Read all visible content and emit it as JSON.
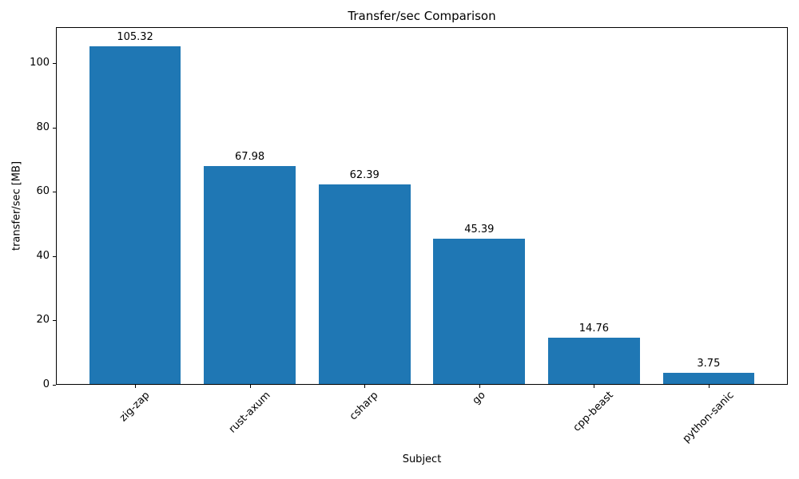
{
  "chart_data": {
    "type": "bar",
    "title": "Transfer/sec Comparison",
    "xlabel": "Subject",
    "ylabel": "transfer/sec [MB]",
    "categories": [
      "zig-zap",
      "rust-axum",
      "csharp",
      "go",
      "cpp-beast",
      "python-sanic"
    ],
    "values": [
      105.32,
      67.98,
      62.39,
      45.39,
      14.76,
      3.75
    ],
    "value_labels": [
      "105.32",
      "67.98",
      "62.39",
      "45.39",
      "14.76",
      "3.75"
    ],
    "yticks": [
      "0",
      "20",
      "40",
      "60",
      "80",
      "100"
    ],
    "ytick_values": [
      0,
      20,
      40,
      60,
      80,
      100
    ],
    "ylim": [
      0,
      111.3
    ],
    "xtick_rotation_deg": 45,
    "bar_color": "#1f77b4",
    "axis_color": "#000000",
    "grid": false,
    "legend_visible": false
  }
}
